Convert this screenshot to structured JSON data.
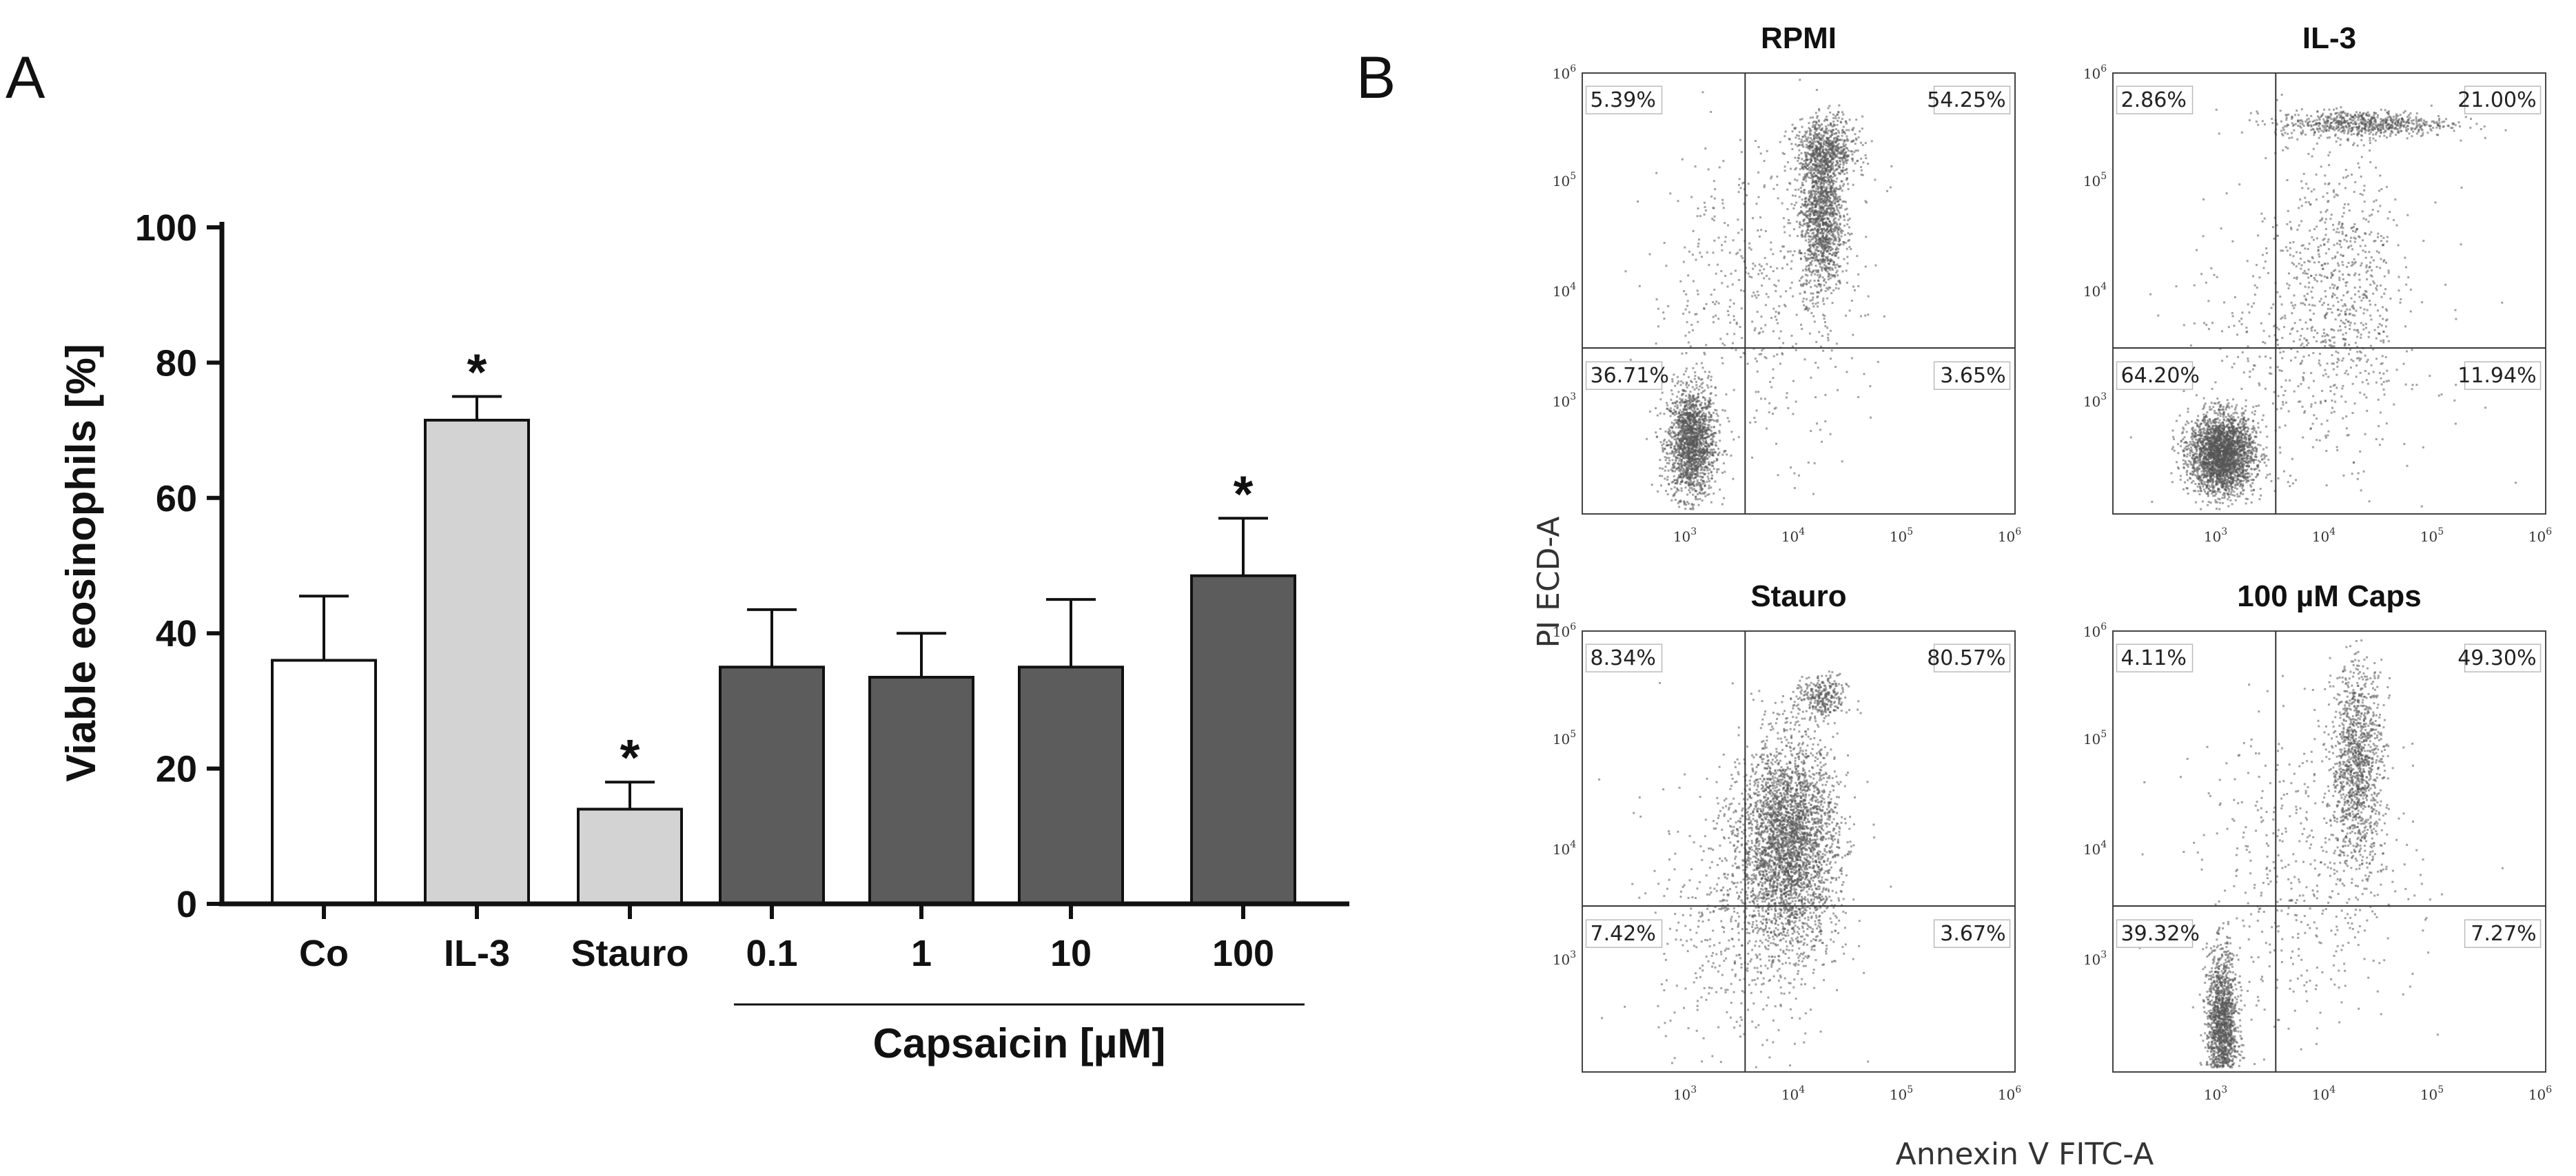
{
  "panel_a_letter": "A",
  "panel_b_letter": "B",
  "chart_data": [
    {
      "type": "bar",
      "categories": [
        "Co",
        "IL-3",
        "Stauro",
        "0.1",
        "1",
        "10",
        "100"
      ],
      "values": [
        36,
        71.5,
        14,
        35,
        33.5,
        35,
        48.5
      ],
      "errors": [
        9.5,
        3.5,
        4,
        8.5,
        6.5,
        10,
        8.5
      ],
      "bar_colors": [
        "#ffffff",
        "#d3d3d3",
        "#d3d3d3",
        "#5c5c5c",
        "#5c5c5c",
        "#5c5c5c",
        "#5c5c5c"
      ],
      "significant": [
        false,
        true,
        true,
        false,
        false,
        false,
        true
      ],
      "significance_marker": "*",
      "ylabel": "Viable eosinophils [%]",
      "yticks": [
        "0",
        "20",
        "40",
        "60",
        "80",
        "100"
      ],
      "ylim": [
        0,
        100
      ],
      "group_label": "Capsaicin [µM]",
      "grid": false
    },
    {
      "type": "scatter",
      "xlabel": "Annexin V FITC-A",
      "ylabel": "PI ECD-A",
      "scale": "log",
      "xlim": [
        100,
        1000000
      ],
      "ylim": [
        100,
        1000000
      ],
      "x_ticks": [
        "10",
        "10",
        "10",
        "10"
      ],
      "x_tick_exponents": [
        "3",
        "4",
        "5",
        "6"
      ],
      "y_ticks": [
        "10",
        "10",
        "10",
        "10"
      ],
      "y_tick_exponents": [
        "6",
        "5",
        "4",
        "3"
      ],
      "plots": [
        {
          "title": "RPMI",
          "quadrants": {
            "upper_left": "5.39%",
            "upper_right": "54.25%",
            "lower_left": "36.71%",
            "lower_right": "3.65%"
          }
        },
        {
          "title": "IL-3",
          "quadrants": {
            "upper_left": "2.86%",
            "upper_right": "21.00%",
            "lower_left": "64.20%",
            "lower_right": "11.94%"
          }
        },
        {
          "title": "Stauro",
          "quadrants": {
            "upper_left": "8.34%",
            "upper_right": "80.57%",
            "lower_left": "7.42%",
            "lower_right": "3.67%"
          }
        },
        {
          "title": "100 µM Caps",
          "quadrants": {
            "upper_left": "4.11%",
            "upper_right": "49.30%",
            "lower_left": "39.32%",
            "lower_right": "7.27%"
          }
        }
      ]
    }
  ]
}
